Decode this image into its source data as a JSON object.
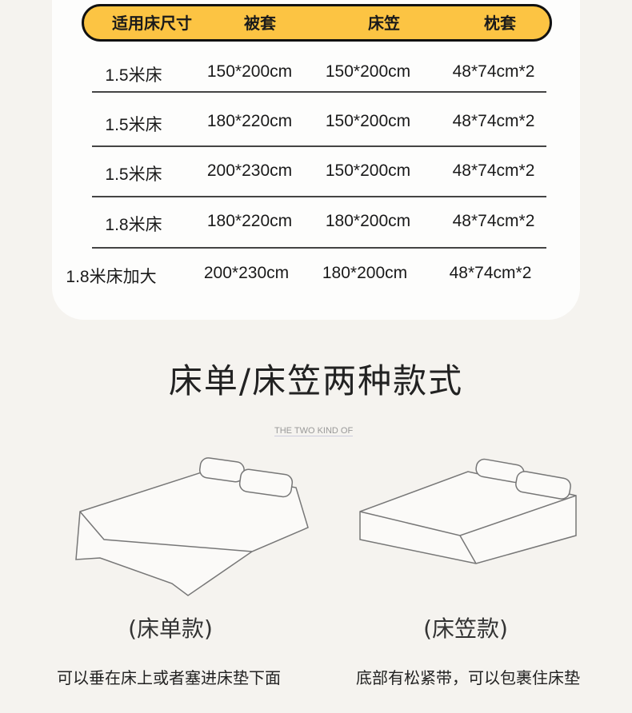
{
  "table": {
    "headers": [
      "适用床尺寸",
      "被套",
      "床笠",
      "枕套"
    ],
    "rows": [
      [
        "1.5米床",
        "150*200cm",
        "150*200cm",
        "48*74cm*2"
      ],
      [
        "1.5米床",
        "180*220cm",
        "150*200cm",
        "48*74cm*2"
      ],
      [
        "1.5米床",
        "200*230cm",
        "150*200cm",
        "48*74cm*2"
      ],
      [
        "1.8米床",
        "180*220cm",
        "180*200cm",
        "48*74cm*2"
      ],
      [
        "1.8米床加大",
        "200*230cm",
        "180*200cm",
        "48*74cm*2"
      ]
    ]
  },
  "section": {
    "title": "床单/床笠两种款式",
    "subtitle": "THE TWO KIND OF"
  },
  "styles": [
    {
      "label": "(床单款)",
      "description": "可以垂在床上或者塞进床垫下面"
    },
    {
      "label": "(床笠款)",
      "description": "底部有松紧带，可以包裹住床垫"
    }
  ],
  "colors": {
    "header": "#fcc443",
    "background": "#f5f3ef"
  }
}
